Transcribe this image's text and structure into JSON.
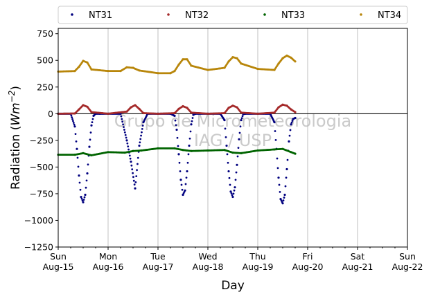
{
  "chart_data": {
    "type": "scatter",
    "title": "",
    "xlabel": "Day",
    "ylabel_main": "Radiation (",
    "ylabel_unit": "Wm",
    "ylabel_exp": "−2",
    "ylabel_close": ")",
    "ylim": [
      -1250,
      800
    ],
    "yticks": [
      750,
      500,
      250,
      0,
      -250,
      -500,
      -750,
      -1000,
      -1250
    ],
    "ytick_labels": [
      "750",
      "500",
      "250",
      "0",
      "−250",
      "−500",
      "−750",
      "−1000",
      "−1250"
    ],
    "xlim": [
      "2021-08-15",
      "2021-08-22"
    ],
    "xticks": [
      {
        "day": "Sun",
        "date": "Aug-15"
      },
      {
        "day": "Mon",
        "date": "Aug-16"
      },
      {
        "day": "Tue",
        "date": "Aug-17"
      },
      {
        "day": "Wed",
        "date": "Aug-18"
      },
      {
        "day": "Thu",
        "date": "Aug-19"
      },
      {
        "day": "Fri",
        "date": "Aug-20"
      },
      {
        "day": "Sat",
        "date": "Aug-21"
      },
      {
        "day": "Sun",
        "date": "Aug-22"
      }
    ],
    "grid": "vertical",
    "zero_line": 0,
    "watermark_line1": "Grupo de Micrometeorologia",
    "watermark_line2": "IAG / USP",
    "legend_position": "top, above plot",
    "series": [
      {
        "name": "NT31",
        "color": "#00007f",
        "x": [
          "2021-08-15T00:00",
          "2021-08-15T06:00",
          "2021-08-15T08:00",
          "2021-08-15T09:00",
          "2021-08-15T10:00",
          "2021-08-15T11:00",
          "2021-08-15T12:00",
          "2021-08-15T13:00",
          "2021-08-15T14:00",
          "2021-08-15T15:00",
          "2021-08-15T16:00",
          "2021-08-15T17:00",
          "2021-08-15T18:00",
          "2021-08-15T20:00",
          "2021-08-16T00:00",
          "2021-08-16T06:00",
          "2021-08-16T09:00",
          "2021-08-16T11:00",
          "2021-08-16T13:00",
          "2021-08-16T15:00",
          "2021-08-16T17:00",
          "2021-08-16T19:00",
          "2021-08-17T00:00",
          "2021-08-17T06:00",
          "2021-08-17T08:00",
          "2021-08-17T09:00",
          "2021-08-17T10:00",
          "2021-08-17T11:00",
          "2021-08-17T12:00",
          "2021-08-17T13:00",
          "2021-08-17T14:00",
          "2021-08-17T15:00",
          "2021-08-17T16:00",
          "2021-08-17T17:00",
          "2021-08-17T18:00",
          "2021-08-18T00:00",
          "2021-08-18T06:00",
          "2021-08-18T08:00",
          "2021-08-18T09:00",
          "2021-08-18T10:00",
          "2021-08-18T11:00",
          "2021-08-18T12:00",
          "2021-08-18T13:00",
          "2021-08-18T14:00",
          "2021-08-18T15:00",
          "2021-08-18T16:00",
          "2021-08-18T17:00",
          "2021-08-18T18:00",
          "2021-08-19T00:00",
          "2021-08-19T06:00",
          "2021-08-19T08:00",
          "2021-08-19T09:00",
          "2021-08-19T10:00",
          "2021-08-19T11:00",
          "2021-08-19T12:00",
          "2021-08-19T13:00",
          "2021-08-19T14:00",
          "2021-08-19T15:00",
          "2021-08-19T16:00",
          "2021-08-19T17:00",
          "2021-08-19T18:00"
        ],
        "y": [
          0,
          0,
          -120,
          -330,
          -580,
          -780,
          -830,
          -760,
          -560,
          -310,
          -110,
          -20,
          0,
          0,
          0,
          0,
          -250,
          -450,
          -700,
          -300,
          -80,
          0,
          0,
          0,
          -20,
          -150,
          -380,
          -620,
          -760,
          -720,
          -540,
          -300,
          -100,
          -10,
          0,
          0,
          0,
          -60,
          -300,
          -540,
          -730,
          -780,
          -690,
          -480,
          -240,
          -60,
          -5,
          0,
          0,
          0,
          -80,
          -330,
          -600,
          -800,
          -840,
          -760,
          -520,
          -260,
          -100,
          -50,
          -40
        ]
      },
      {
        "name": "NT32",
        "color": "#a52a2a",
        "x": [
          "2021-08-15T00:00",
          "2021-08-15T08:00",
          "2021-08-15T10:00",
          "2021-08-15T12:00",
          "2021-08-15T14:00",
          "2021-08-15T16:00",
          "2021-08-16T00:00",
          "2021-08-16T09:00",
          "2021-08-16T11:00",
          "2021-08-16T13:00",
          "2021-08-16T15:00",
          "2021-08-16T17:00",
          "2021-08-17T00:00",
          "2021-08-17T08:00",
          "2021-08-17T10:00",
          "2021-08-17T12:00",
          "2021-08-17T14:00",
          "2021-08-17T16:00",
          "2021-08-18T00:00",
          "2021-08-18T08:00",
          "2021-08-18T10:00",
          "2021-08-18T12:00",
          "2021-08-18T14:00",
          "2021-08-18T16:00",
          "2021-08-19T00:00",
          "2021-08-19T08:00",
          "2021-08-19T10:00",
          "2021-08-19T12:00",
          "2021-08-19T14:00",
          "2021-08-19T16:00",
          "2021-08-19T18:00"
        ],
        "y": [
          0,
          2,
          40,
          80,
          65,
          15,
          0,
          20,
          60,
          80,
          45,
          5,
          0,
          5,
          45,
          70,
          55,
          10,
          0,
          5,
          55,
          75,
          60,
          10,
          0,
          10,
          60,
          85,
          75,
          40,
          15
        ]
      },
      {
        "name": "NT33",
        "color": "#006400",
        "x": [
          "2021-08-15T00:00",
          "2021-08-15T08:00",
          "2021-08-15T12:00",
          "2021-08-15T16:00",
          "2021-08-16T00:00",
          "2021-08-16T08:00",
          "2021-08-16T12:00",
          "2021-08-16T16:00",
          "2021-08-17T00:00",
          "2021-08-17T08:00",
          "2021-08-17T12:00",
          "2021-08-17T16:00",
          "2021-08-18T00:00",
          "2021-08-18T08:00",
          "2021-08-18T12:00",
          "2021-08-18T16:00",
          "2021-08-19T00:00",
          "2021-08-19T08:00",
          "2021-08-19T12:00",
          "2021-08-19T16:00",
          "2021-08-19T18:00"
        ],
        "y": [
          -385,
          -385,
          -370,
          -390,
          -360,
          -365,
          -350,
          -345,
          -325,
          -325,
          -340,
          -350,
          -345,
          -340,
          -365,
          -370,
          -345,
          -335,
          -330,
          -360,
          -375
        ]
      },
      {
        "name": "NT34",
        "color": "#b8860b",
        "x": [
          "2021-08-15T00:00",
          "2021-08-15T08:00",
          "2021-08-15T10:00",
          "2021-08-15T12:00",
          "2021-08-15T14:00",
          "2021-08-15T16:00",
          "2021-08-16T00:00",
          "2021-08-16T06:00",
          "2021-08-16T09:00",
          "2021-08-16T12:00",
          "2021-08-16T15:00",
          "2021-08-17T00:00",
          "2021-08-17T06:00",
          "2021-08-17T08:00",
          "2021-08-17T10:00",
          "2021-08-17T12:00",
          "2021-08-17T14:00",
          "2021-08-17T16:00",
          "2021-08-18T00:00",
          "2021-08-18T08:00",
          "2021-08-18T10:00",
          "2021-08-18T12:00",
          "2021-08-18T14:00",
          "2021-08-18T16:00",
          "2021-08-19T00:00",
          "2021-08-19T08:00",
          "2021-08-19T10:00",
          "2021-08-19T12:00",
          "2021-08-19T14:00",
          "2021-08-19T16:00",
          "2021-08-19T18:00"
        ],
        "y": [
          395,
          400,
          440,
          495,
          480,
          415,
          400,
          400,
          435,
          430,
          405,
          380,
          380,
          400,
          460,
          510,
          510,
          450,
          410,
          430,
          490,
          530,
          520,
          470,
          420,
          410,
          470,
          520,
          545,
          525,
          490
        ]
      }
    ]
  }
}
